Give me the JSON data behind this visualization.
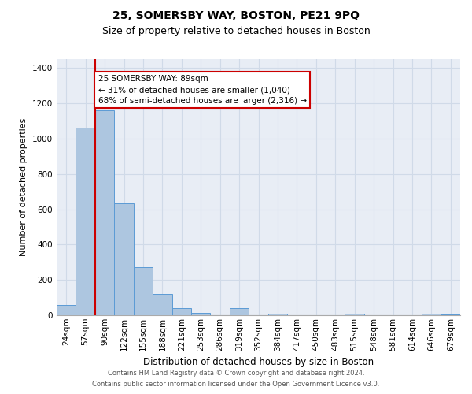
{
  "title_line1": "25, SOMERSBY WAY, BOSTON, PE21 9PQ",
  "title_line2": "Size of property relative to detached houses in Boston",
  "xlabel": "Distribution of detached houses by size in Boston",
  "ylabel": "Number of detached properties",
  "categories": [
    "24sqm",
    "57sqm",
    "90sqm",
    "122sqm",
    "155sqm",
    "188sqm",
    "221sqm",
    "253sqm",
    "286sqm",
    "319sqm",
    "352sqm",
    "384sqm",
    "417sqm",
    "450sqm",
    "483sqm",
    "515sqm",
    "548sqm",
    "581sqm",
    "614sqm",
    "646sqm",
    "679sqm"
  ],
  "values": [
    60,
    1060,
    1160,
    635,
    270,
    120,
    38,
    12,
    0,
    38,
    0,
    10,
    0,
    0,
    0,
    10,
    0,
    0,
    0,
    10,
    5
  ],
  "bar_color": "#adc6e0",
  "bar_edge_color": "#5b9bd5",
  "grid_color": "#d0dae8",
  "background_color": "#e8edf5",
  "red_line_color": "#cc0000",
  "annotation_text": "25 SOMERSBY WAY: 89sqm\n← 31% of detached houses are smaller (1,040)\n68% of semi-detached houses are larger (2,316) →",
  "footer_line1": "Contains HM Land Registry data © Crown copyright and database right 2024.",
  "footer_line2": "Contains public sector information licensed under the Open Government Licence v3.0.",
  "ylim": [
    0,
    1450
  ],
  "yticks": [
    0,
    200,
    400,
    600,
    800,
    1000,
    1200,
    1400
  ],
  "title1_fontsize": 10,
  "title2_fontsize": 9,
  "ylabel_fontsize": 8,
  "xlabel_fontsize": 8.5,
  "tick_fontsize": 7.5,
  "footer_fontsize": 6.0
}
